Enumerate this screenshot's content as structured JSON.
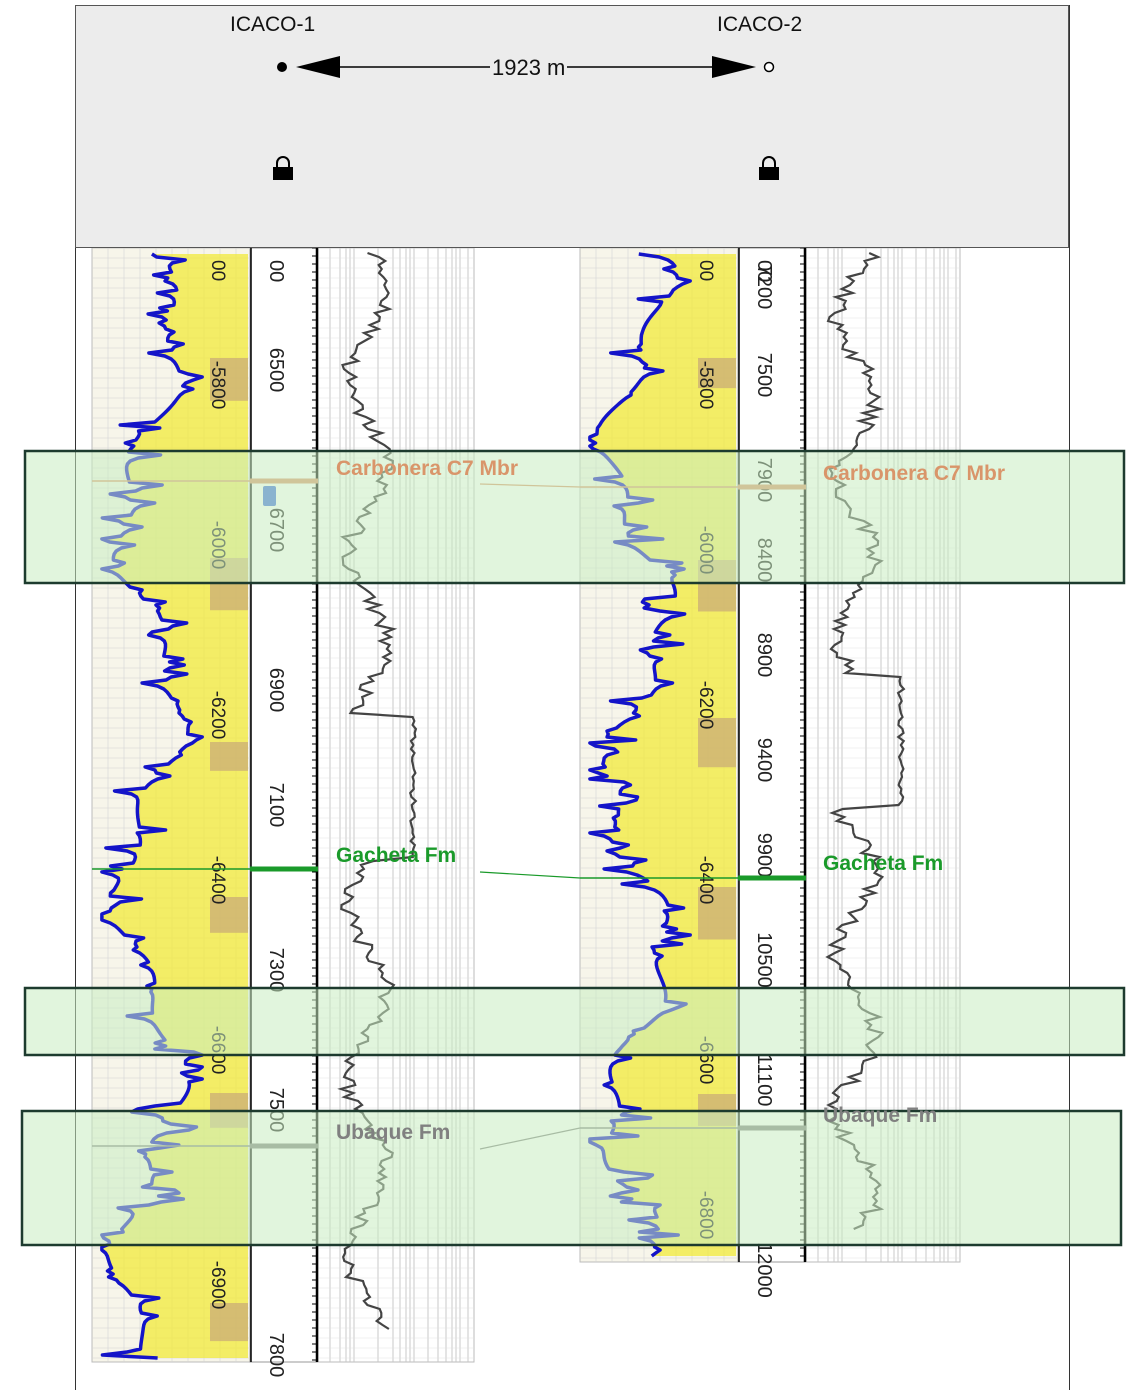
{
  "header": {
    "wells": [
      {
        "name": "ICACO-1",
        "symbol": "filled-circle-icon"
      },
      {
        "name": "ICACO-2",
        "symbol": "open-circle-icon"
      }
    ],
    "distance_label": "1923 m",
    "lock_icons": [
      "lock-icon",
      "lock-icon"
    ]
  },
  "well1": {
    "md_ticks": [
      "6500",
      "6700",
      "6900",
      "7100",
      "7300",
      "7500",
      "7800"
    ],
    "tvd_ticks": [
      "-5800",
      "-6000",
      "-6200",
      "-6400",
      "-6600",
      "-6900"
    ],
    "md_top_partial": "00"
  },
  "well2": {
    "md_ticks": [
      "7200",
      "7500",
      "7900",
      "8400",
      "8900",
      "9400",
      "9900",
      "10500",
      "11100",
      "12000"
    ],
    "tvd_ticks": [
      "-5800",
      "-6000",
      "-6200",
      "-6400",
      "-6600",
      "-6800"
    ],
    "md_top_partial": "00"
  },
  "tops": [
    {
      "name": "Carbonera C7 Mbr",
      "color": "#d9956a"
    },
    {
      "name": "Gacheta Fm",
      "color": "#1a9a2a"
    },
    {
      "name": "Ubaque Fm",
      "color": "#808080"
    }
  ],
  "colors": {
    "gamma_ray": "#1414c8",
    "sand_fill": "#f2ea3a",
    "shale_fill": "#c8a878",
    "resistivity": "#444444",
    "highlight": "#c9ecc1",
    "highlight_border": "#1d3b2e"
  }
}
